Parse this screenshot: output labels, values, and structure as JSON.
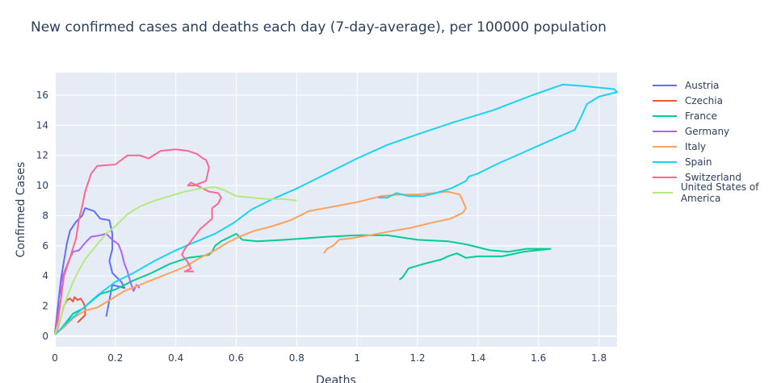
{
  "chart_data": {
    "type": "line",
    "title": "New confirmed cases and deaths each day (7-day-average), per 100000 population",
    "xlabel": "Deaths",
    "ylabel": "Confirmed Cases",
    "xlim": [
      0,
      1.86
    ],
    "ylim": [
      -0.7,
      17.5
    ],
    "x_ticks": [
      0,
      0.2,
      0.4,
      0.6,
      0.8,
      1,
      1.2,
      1.4,
      1.6,
      1.8
    ],
    "x_tick_labels": [
      "0",
      "0.2",
      "0.4",
      "0.6",
      "0.8",
      "1",
      "1.2",
      "1.4",
      "1.6",
      "1.8"
    ],
    "y_ticks": [
      0,
      2,
      4,
      6,
      8,
      10,
      12,
      14,
      16
    ],
    "y_tick_labels": [
      "0",
      "2",
      "4",
      "6",
      "8",
      "10",
      "12",
      "14",
      "16"
    ],
    "grid": true,
    "legend_position": "right",
    "colors": {
      "plot_bg": "#e5ecf6",
      "grid": "#ffffff",
      "text": "#2a3f5f"
    },
    "series": [
      {
        "name": "Austria",
        "color": "#636efa",
        "points": [
          [
            0,
            0.2
          ],
          [
            0.01,
            2
          ],
          [
            0.02,
            3.8
          ],
          [
            0.03,
            5
          ],
          [
            0.04,
            6.2
          ],
          [
            0.05,
            7
          ],
          [
            0.07,
            7.6
          ],
          [
            0.09,
            8
          ],
          [
            0.1,
            8.5
          ],
          [
            0.13,
            8.3
          ],
          [
            0.15,
            7.8
          ],
          [
            0.18,
            7.7
          ],
          [
            0.19,
            6.8
          ],
          [
            0.19,
            5.8
          ],
          [
            0.18,
            5
          ],
          [
            0.19,
            4.2
          ],
          [
            0.22,
            3.6
          ],
          [
            0.23,
            3.2
          ],
          [
            0.19,
            3.4
          ],
          [
            0.18,
            2.4
          ],
          [
            0.17,
            1.3
          ]
        ]
      },
      {
        "name": "Czechia",
        "color": "#EF553B",
        "points": [
          [
            0,
            0.1
          ],
          [
            0.01,
            0.6
          ],
          [
            0.02,
            1.3
          ],
          [
            0.03,
            2
          ],
          [
            0.04,
            2.4
          ],
          [
            0.05,
            2.5
          ],
          [
            0.06,
            2.3
          ],
          [
            0.065,
            2.6
          ],
          [
            0.075,
            2.4
          ],
          [
            0.085,
            2.5
          ],
          [
            0.095,
            2.2
          ],
          [
            0.1,
            1.9
          ],
          [
            0.1,
            1.4
          ],
          [
            0.09,
            1.2
          ],
          [
            0.075,
            0.9
          ]
        ]
      },
      {
        "name": "France",
        "color": "#00cc96",
        "points": [
          [
            0,
            0.1
          ],
          [
            0.02,
            0.5
          ],
          [
            0.04,
            1
          ],
          [
            0.06,
            1.5
          ],
          [
            0.09,
            1.8
          ],
          [
            0.12,
            2.3
          ],
          [
            0.15,
            2.8
          ],
          [
            0.2,
            3.1
          ],
          [
            0.26,
            3.7
          ],
          [
            0.32,
            4.2
          ],
          [
            0.38,
            4.8
          ],
          [
            0.44,
            5.2
          ],
          [
            0.48,
            5.3
          ],
          [
            0.51,
            5.4
          ],
          [
            0.52,
            5.6
          ],
          [
            0.53,
            6
          ],
          [
            0.55,
            6.3
          ],
          [
            0.58,
            6.6
          ],
          [
            0.6,
            6.8
          ],
          [
            0.62,
            6.4
          ],
          [
            0.67,
            6.3
          ],
          [
            0.76,
            6.4
          ],
          [
            0.9,
            6.6
          ],
          [
            1,
            6.7
          ],
          [
            1.1,
            6.7
          ],
          [
            1.2,
            6.4
          ],
          [
            1.3,
            6.3
          ],
          [
            1.36,
            6.1
          ],
          [
            1.44,
            5.7
          ],
          [
            1.5,
            5.6
          ],
          [
            1.56,
            5.8
          ],
          [
            1.61,
            5.8
          ],
          [
            1.64,
            5.8
          ],
          [
            1.55,
            5.6
          ],
          [
            1.48,
            5.3
          ],
          [
            1.4,
            5.3
          ],
          [
            1.36,
            5.2
          ],
          [
            1.33,
            5.5
          ],
          [
            1.3,
            5.3
          ],
          [
            1.28,
            5.1
          ],
          [
            1.22,
            4.8
          ],
          [
            1.17,
            4.5
          ],
          [
            1.16,
            4.2
          ],
          [
            1.15,
            3.9
          ],
          [
            1.14,
            3.75
          ]
        ]
      },
      {
        "name": "Germany",
        "color": "#ab63fa",
        "points": [
          [
            0,
            0.2
          ],
          [
            0.01,
            1.5
          ],
          [
            0.02,
            2.5
          ],
          [
            0.02,
            3.5
          ],
          [
            0.03,
            4.2
          ],
          [
            0.04,
            4.7
          ],
          [
            0.05,
            5.2
          ],
          [
            0.06,
            5.6
          ],
          [
            0.08,
            5.7
          ],
          [
            0.1,
            6.2
          ],
          [
            0.12,
            6.6
          ],
          [
            0.15,
            6.7
          ],
          [
            0.17,
            6.8
          ],
          [
            0.19,
            6.4
          ],
          [
            0.21,
            6.1
          ],
          [
            0.22,
            5.6
          ],
          [
            0.23,
            4.8
          ],
          [
            0.24,
            4.3
          ],
          [
            0.25,
            3.6
          ],
          [
            0.26,
            3
          ],
          [
            0.27,
            3.4
          ],
          [
            0.28,
            3.2
          ]
        ]
      },
      {
        "name": "Italy",
        "color": "#FFA15A",
        "points": [
          [
            0,
            0.1
          ],
          [
            0.03,
            0.6
          ],
          [
            0.06,
            1.2
          ],
          [
            0.1,
            1.7
          ],
          [
            0.14,
            1.9
          ],
          [
            0.19,
            2.5
          ],
          [
            0.23,
            3
          ],
          [
            0.28,
            3.4
          ],
          [
            0.33,
            3.8
          ],
          [
            0.38,
            4.2
          ],
          [
            0.43,
            4.6
          ],
          [
            0.48,
            5.2
          ],
          [
            0.53,
            5.7
          ],
          [
            0.57,
            6.2
          ],
          [
            0.61,
            6.6
          ],
          [
            0.66,
            7
          ],
          [
            0.72,
            7.3
          ],
          [
            0.78,
            7.7
          ],
          [
            0.84,
            8.3
          ],
          [
            0.92,
            8.6
          ],
          [
            1,
            8.9
          ],
          [
            1.08,
            9.3
          ],
          [
            1.14,
            9.4
          ],
          [
            1.2,
            9.4
          ],
          [
            1.25,
            9.5
          ],
          [
            1.3,
            9.6
          ],
          [
            1.34,
            9.4
          ],
          [
            1.36,
            8.5
          ],
          [
            1.35,
            8.2
          ],
          [
            1.31,
            7.8
          ],
          [
            1.24,
            7.5
          ],
          [
            1.18,
            7.2
          ],
          [
            1.12,
            7
          ],
          [
            1.04,
            6.7
          ],
          [
            0.98,
            6.5
          ],
          [
            0.94,
            6.4
          ],
          [
            0.92,
            6
          ],
          [
            0.9,
            5.8
          ],
          [
            0.89,
            5.5
          ]
        ]
      },
      {
        "name": "Spain",
        "color": "#19d3f3",
        "points": [
          [
            0,
            0.1
          ],
          [
            0.04,
            0.9
          ],
          [
            0.09,
            1.8
          ],
          [
            0.14,
            2.7
          ],
          [
            0.2,
            3.6
          ],
          [
            0.26,
            4.2
          ],
          [
            0.33,
            5
          ],
          [
            0.4,
            5.7
          ],
          [
            0.47,
            6.3
          ],
          [
            0.53,
            6.8
          ],
          [
            0.59,
            7.5
          ],
          [
            0.65,
            8.4
          ],
          [
            0.72,
            9.1
          ],
          [
            0.8,
            9.8
          ],
          [
            0.9,
            10.8
          ],
          [
            1,
            11.8
          ],
          [
            1.1,
            12.7
          ],
          [
            1.2,
            13.4
          ],
          [
            1.32,
            14.2
          ],
          [
            1.45,
            15
          ],
          [
            1.58,
            16
          ],
          [
            1.68,
            16.7
          ],
          [
            1.75,
            16.6
          ],
          [
            1.85,
            16.4
          ],
          [
            1.86,
            16.2
          ],
          [
            1.8,
            15.9
          ],
          [
            1.76,
            15.4
          ],
          [
            1.74,
            14.5
          ],
          [
            1.72,
            13.7
          ],
          [
            1.64,
            13
          ],
          [
            1.55,
            12.2
          ],
          [
            1.46,
            11.4
          ],
          [
            1.4,
            10.8
          ],
          [
            1.37,
            10.6
          ],
          [
            1.36,
            10.3
          ],
          [
            1.31,
            9.8
          ],
          [
            1.26,
            9.5
          ],
          [
            1.22,
            9.3
          ],
          [
            1.17,
            9.3
          ],
          [
            1.13,
            9.5
          ],
          [
            1.1,
            9.2
          ],
          [
            1.07,
            9.2
          ]
        ]
      },
      {
        "name": "Switzerland",
        "color": "#FF6692",
        "points": [
          [
            0,
            0.2
          ],
          [
            0.01,
            1
          ],
          [
            0.02,
            2.5
          ],
          [
            0.03,
            4
          ],
          [
            0.05,
            5.2
          ],
          [
            0.07,
            6.5
          ],
          [
            0.08,
            7.8
          ],
          [
            0.09,
            8.6
          ],
          [
            0.1,
            9.6
          ],
          [
            0.12,
            10.8
          ],
          [
            0.14,
            11.3
          ],
          [
            0.2,
            11.4
          ],
          [
            0.24,
            12
          ],
          [
            0.28,
            12
          ],
          [
            0.31,
            11.8
          ],
          [
            0.35,
            12.3
          ],
          [
            0.4,
            12.4
          ],
          [
            0.44,
            12.3
          ],
          [
            0.47,
            12.1
          ],
          [
            0.49,
            11.8
          ],
          [
            0.5,
            11.7
          ],
          [
            0.51,
            11.2
          ],
          [
            0.5,
            10.3
          ],
          [
            0.46,
            10
          ],
          [
            0.44,
            10
          ],
          [
            0.45,
            10.2
          ],
          [
            0.48,
            9.9
          ],
          [
            0.51,
            9.6
          ],
          [
            0.54,
            9.5
          ],
          [
            0.55,
            9.2
          ],
          [
            0.54,
            8.8
          ],
          [
            0.52,
            8.5
          ],
          [
            0.52,
            7.8
          ],
          [
            0.48,
            7.1
          ],
          [
            0.45,
            6.3
          ],
          [
            0.43,
            5.8
          ],
          [
            0.42,
            5.4
          ],
          [
            0.44,
            4.9
          ],
          [
            0.45,
            4.5
          ],
          [
            0.43,
            4.3
          ],
          [
            0.46,
            4.3
          ]
        ]
      },
      {
        "name": "United States of America",
        "color": "#B6E880",
        "points": [
          [
            0,
            0.1
          ],
          [
            0.02,
            1.3
          ],
          [
            0.04,
            2.6
          ],
          [
            0.06,
            3.6
          ],
          [
            0.08,
            4.4
          ],
          [
            0.1,
            5.1
          ],
          [
            0.12,
            5.6
          ],
          [
            0.14,
            6.1
          ],
          [
            0.17,
            6.8
          ],
          [
            0.2,
            7.3
          ],
          [
            0.24,
            8.1
          ],
          [
            0.28,
            8.6
          ],
          [
            0.33,
            9
          ],
          [
            0.38,
            9.3
          ],
          [
            0.43,
            9.6
          ],
          [
            0.48,
            9.8
          ],
          [
            0.53,
            9.9
          ],
          [
            0.56,
            9.7
          ],
          [
            0.6,
            9.3
          ],
          [
            0.65,
            9.2
          ],
          [
            0.7,
            9.1
          ],
          [
            0.76,
            9.1
          ],
          [
            0.8,
            9
          ]
        ]
      }
    ]
  }
}
